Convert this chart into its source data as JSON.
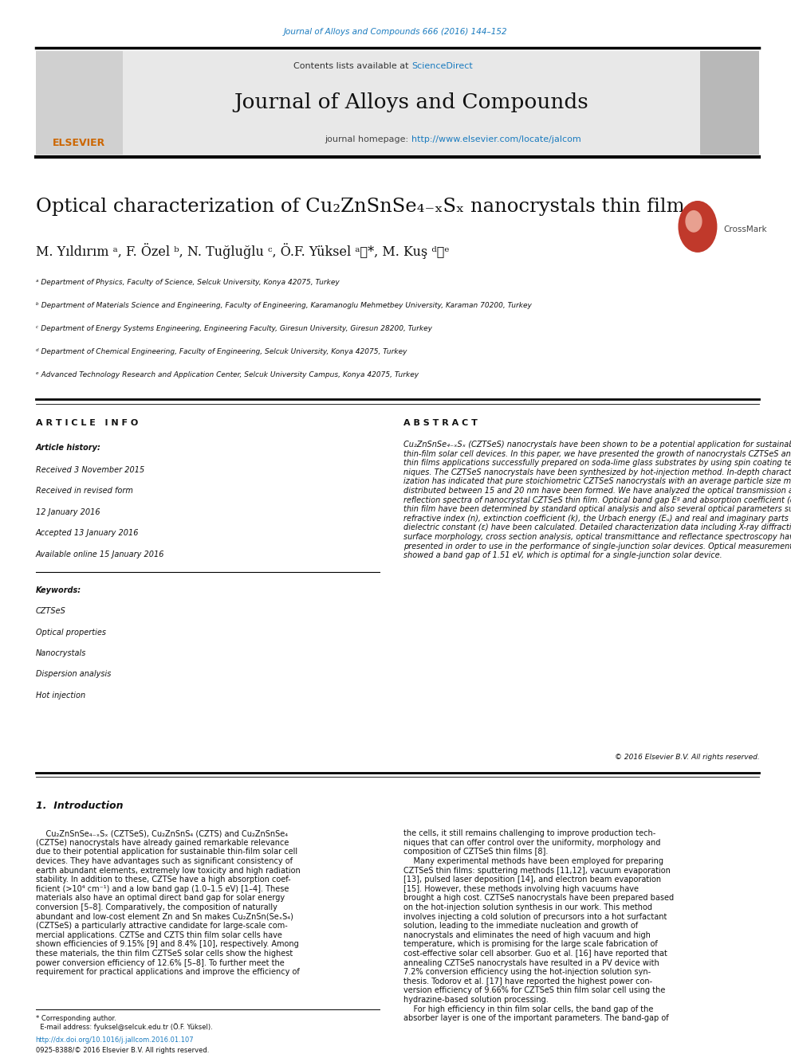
{
  "bg_color": "#ffffff",
  "page_width": 9.92,
  "page_height": 13.23,
  "top_link": "Journal of Alloys and Compounds 666 (2016) 144–152",
  "top_link_color": "#1a7bbf",
  "sciencedirect_color": "#1a7bbf",
  "journal_name": "Journal of Alloys and Compounds",
  "homepage_url": "http://www.elsevier.com/locate/jalcom",
  "homepage_url_color": "#1a7bbf",
  "article_info_header": "A R T I C L E   I N F O",
  "abstract_header": "A B S T R A C T",
  "article_history_label": "Article history:",
  "received1": "Received 3 November 2015",
  "received2": "Received in revised form",
  "received2b": "12 January 2016",
  "accepted": "Accepted 13 January 2016",
  "available": "Available online 15 January 2016",
  "keywords_label": "Keywords:",
  "keywords": [
    "CZTSeS",
    "Optical properties",
    "Nanocrystals",
    "Dispersion analysis",
    "Hot injection"
  ],
  "affil_a": "ᵃ Department of Physics, Faculty of Science, Selcuk University, Konya 42075, Turkey",
  "affil_b": "ᵇ Department of Materials Science and Engineering, Faculty of Engineering, Karamanoglu Mehmetbey University, Karaman 70200, Turkey",
  "affil_c": "ᶜ Department of Energy Systems Engineering, Engineering Faculty, Giresun University, Giresun 28200, Turkey",
  "affil_d": "ᵈ Department of Chemical Engineering, Faculty of Engineering, Selcuk University, Konya 42075, Turkey",
  "affil_e": "ᵉ Advanced Technology Research and Application Center, Selcuk University Campus, Konya 42075, Turkey",
  "copyright_text": "© 2016 Elsevier B.V. All rights reserved.",
  "section1_title": "1.  Introduction",
  "footer_doi": "http://dx.doi.org/10.1016/j.jallcom.2016.01.107",
  "footer_issn": "0925-8388/© 2016 Elsevier B.V. All rights reserved."
}
